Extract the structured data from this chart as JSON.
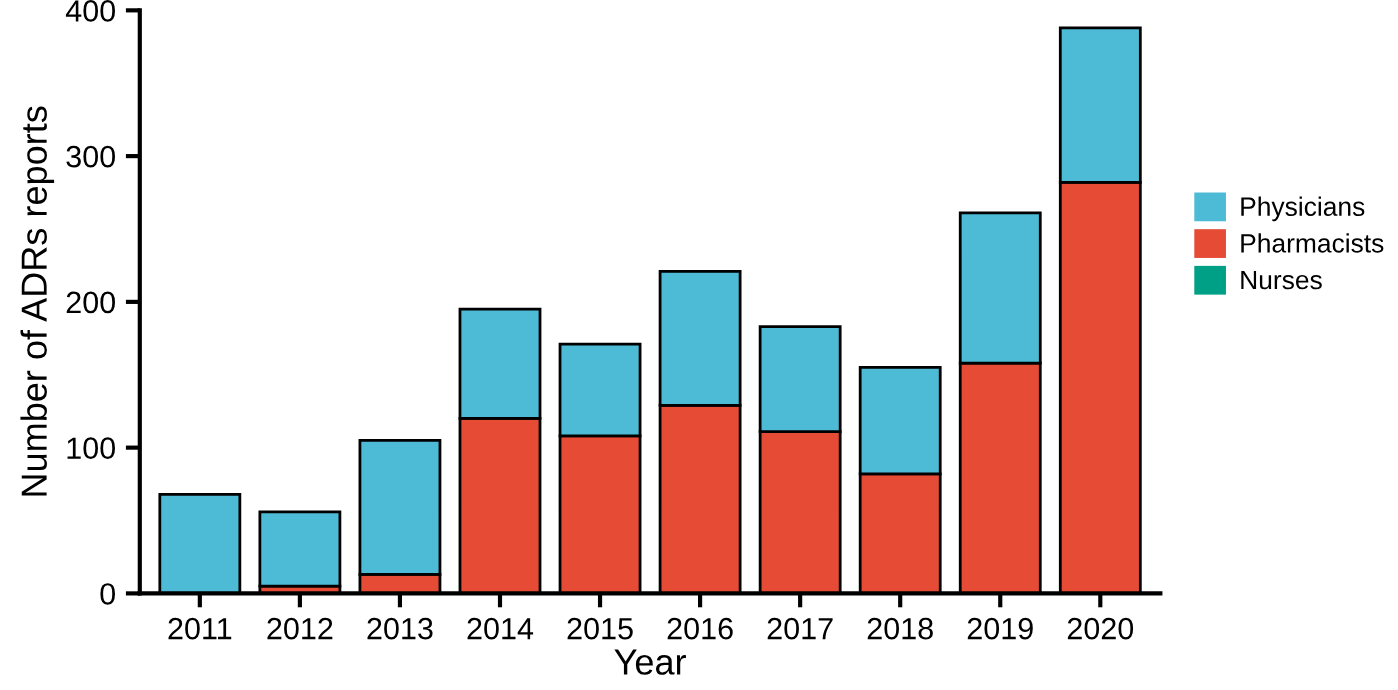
{
  "chart_data": {
    "type": "bar",
    "xlabel": "Year",
    "ylabel": "Number of ADRs reports",
    "categories": [
      "2011",
      "2012",
      "2013",
      "2014",
      "2015",
      "2016",
      "2017",
      "2018",
      "2019",
      "2020"
    ],
    "stacked": true,
    "series": [
      {
        "name": "Nurses",
        "color": "#00a087",
        "values": [
          0,
          0,
          0,
          null,
          null,
          null,
          0,
          0,
          0,
          0
        ]
      },
      {
        "name": "Pharmacists",
        "color": "#e64b35",
        "values": [
          0,
          5,
          13,
          120,
          108,
          129,
          111,
          82,
          158,
          282
        ]
      },
      {
        "name": "Physicians",
        "color": "#4dbbd5",
        "values": [
          68,
          51,
          92,
          75,
          63,
          92,
          72,
          73,
          103,
          106
        ]
      }
    ],
    "ylim": [
      0,
      400
    ],
    "yticks": [
      0,
      100,
      200,
      300,
      400
    ],
    "grid": false,
    "legend": "right"
  }
}
